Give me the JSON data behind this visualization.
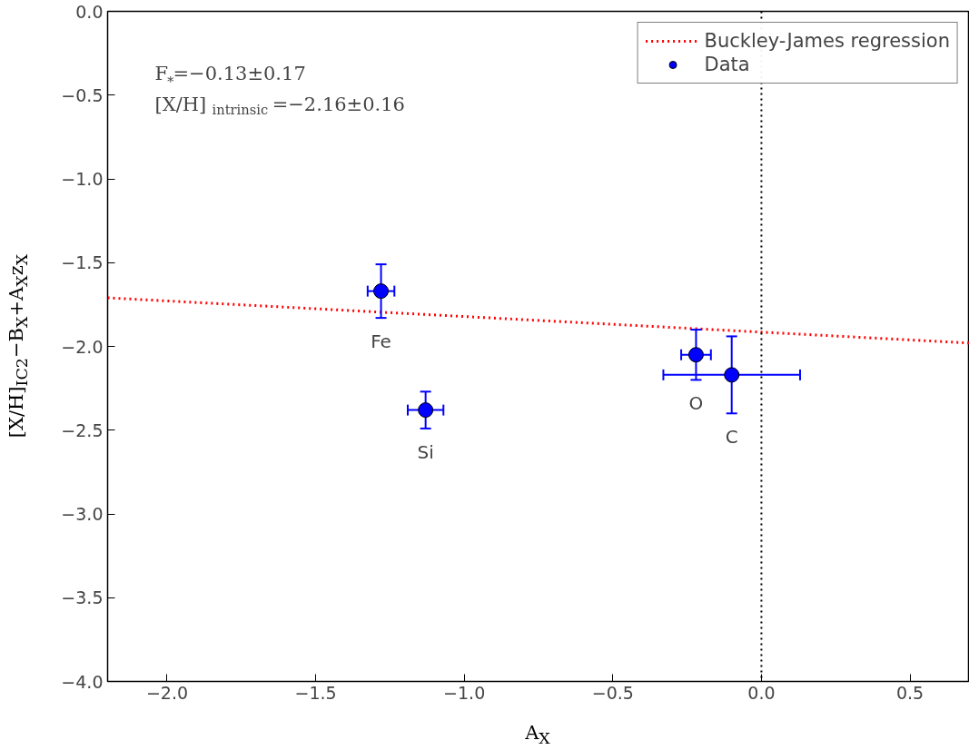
{
  "chart_data": {
    "type": "scatter",
    "xlabel": "A$_{X}$",
    "ylabel": "[X/H]$_{IC2}$−B$_{X}$+A$_{X}$z$_{X}$",
    "xlim": [
      -2.2,
      0.7
    ],
    "ylim": [
      -4.0,
      0.0
    ],
    "xticks": [
      {
        "value": -2.0,
        "label": "−2.0"
      },
      {
        "value": -1.5,
        "label": "−1.5"
      },
      {
        "value": -1.0,
        "label": "−1.0"
      },
      {
        "value": -0.5,
        "label": "−0.5"
      },
      {
        "value": 0.0,
        "label": "0.0"
      },
      {
        "value": 0.5,
        "label": "0.5"
      }
    ],
    "yticks": [
      {
        "value": 0.0,
        "label": "0.0"
      },
      {
        "value": -0.5,
        "label": "−0.5"
      },
      {
        "value": -1.0,
        "label": "−1.0"
      },
      {
        "value": -1.5,
        "label": "−1.5"
      },
      {
        "value": -2.0,
        "label": "−2.0"
      },
      {
        "value": -2.5,
        "label": "−2.5"
      },
      {
        "value": -3.0,
        "label": "−3.0"
      },
      {
        "value": -3.5,
        "label": "−3.5"
      },
      {
        "value": -4.0,
        "label": "−4.0"
      }
    ],
    "grid": false,
    "legend": "top right",
    "series": [
      {
        "name": "Buckley-James regression",
        "type": "line",
        "color": "#ff0000",
        "line_style": "dotted",
        "x": [
          -2.2,
          0.7
        ],
        "values": [
          -1.71,
          -1.98
        ]
      },
      {
        "name": "Data",
        "color": "#0000ff",
        "marker": "circle",
        "x": [
          -1.28,
          -1.13,
          -0.22,
          -0.1
        ],
        "values": [
          -1.67,
          -2.38,
          -2.05,
          -2.17
        ],
        "errors": [
          0.16,
          0.11,
          0.15,
          0.23
        ],
        "xerrors": [
          0.045,
          0.06,
          0.05,
          0.23
        ]
      }
    ],
    "ref_lines": [
      {
        "axis": "x",
        "value": 0.0,
        "color": "#000000",
        "line_style": "dotted"
      }
    ],
    "annotations": [
      "F$_{∗}$=−0.13±0.17",
      "[X/H]$_{intrinsic}$=−2.16±0.16",
      {
        "text": "Fe",
        "x": -1.28,
        "y": -1.67
      },
      {
        "text": "Si",
        "x": -1.13,
        "y": -2.38
      },
      {
        "text": "O",
        "x": -0.22,
        "y": -2.05
      },
      {
        "text": "C",
        "x": -0.1,
        "y": -2.17
      }
    ]
  }
}
